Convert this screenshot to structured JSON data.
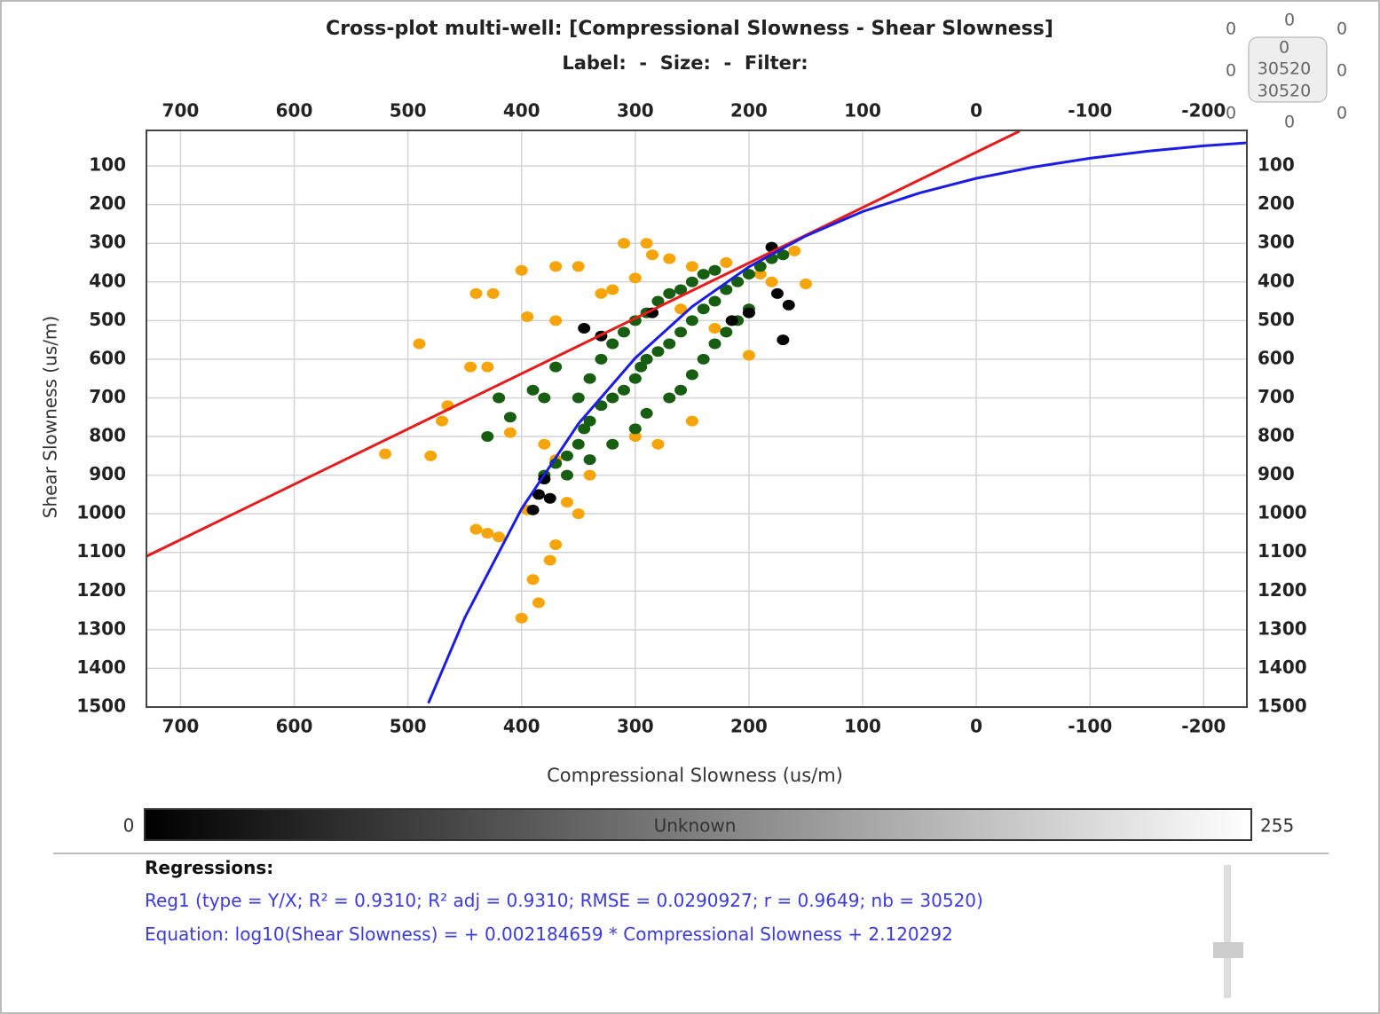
{
  "chart_data": {
    "type": "scatter",
    "title": "Cross-plot multi-well: [Compressional Slowness - Shear Slowness]",
    "subtitle": "Label:  -  Size:  -  Filter:",
    "x_label": "Compressional Slowness (us/m)",
    "y_label": "Shear Slowness (us/m)",
    "xlim": [
      730,
      -238
    ],
    "ylim": [
      1500,
      8
    ],
    "xticks": [
      700,
      600,
      500,
      400,
      300,
      200,
      100,
      0,
      -100,
      -200
    ],
    "yticks": [
      100,
      200,
      300,
      400,
      500,
      600,
      700,
      800,
      900,
      1000,
      1100,
      1200,
      1300,
      1400,
      1500
    ],
    "grid": true,
    "series": [
      {
        "type": "scatter",
        "color": "#f5a50a",
        "x": [
          520,
          480,
          470,
          490,
          465,
          445,
          430,
          420,
          440,
          425,
          395,
          370,
          400,
          370,
          350,
          330,
          320,
          310,
          290,
          300,
          285,
          270,
          250,
          220,
          190,
          180,
          150,
          160,
          200,
          230,
          260,
          410,
          380,
          370,
          360,
          350,
          395,
          370,
          390,
          385,
          400,
          420,
          430,
          375,
          340,
          300,
          280,
          250,
          440
        ],
        "values": [
          845,
          850,
          760,
          560,
          720,
          620,
          620,
          700,
          430,
          430,
          490,
          500,
          370,
          360,
          360,
          430,
          420,
          300,
          300,
          390,
          330,
          340,
          360,
          350,
          380,
          400,
          405,
          320,
          590,
          520,
          470,
          790,
          820,
          860,
          970,
          1000,
          990,
          1080,
          1170,
          1230,
          1270,
          1060,
          1050,
          1120,
          900,
          800,
          820,
          760,
          1040
        ]
      },
      {
        "type": "scatter",
        "color": "#175e12",
        "x": [
          380,
          370,
          360,
          350,
          345,
          340,
          330,
          320,
          310,
          300,
          295,
          290,
          280,
          270,
          260,
          250,
          240,
          230,
          220,
          210,
          200,
          190,
          180,
          170,
          350,
          340,
          330,
          320,
          310,
          300,
          290,
          280,
          270,
          260,
          250,
          240,
          230,
          360,
          340,
          320,
          300,
          290,
          270,
          260,
          250,
          240,
          230,
          220,
          210,
          200,
          430,
          410,
          380,
          390,
          420,
          370
        ],
        "values": [
          900,
          870,
          850,
          820,
          780,
          760,
          720,
          700,
          680,
          650,
          620,
          600,
          580,
          560,
          530,
          500,
          470,
          450,
          420,
          400,
          380,
          360,
          340,
          330,
          700,
          650,
          600,
          560,
          530,
          500,
          480,
          450,
          430,
          420,
          400,
          380,
          370,
          900,
          860,
          820,
          780,
          740,
          700,
          680,
          640,
          600,
          560,
          530,
          500,
          470,
          800,
          750,
          700,
          680,
          700,
          620
        ]
      },
      {
        "type": "scatter",
        "color": "#050505",
        "x": [
          380,
          385,
          390,
          375,
          345,
          330,
          215,
          180,
          175,
          165,
          170,
          285,
          200
        ],
        "values": [
          910,
          950,
          990,
          960,
          520,
          540,
          500,
          310,
          430,
          460,
          550,
          480,
          480
        ]
      },
      {
        "type": "line",
        "color": "#e51c1c",
        "x": [
          730,
          -38
        ],
        "values": [
          1110,
          10
        ]
      },
      {
        "type": "line",
        "color": "#1c1ce5",
        "x": [
          482,
          450,
          400,
          350,
          300,
          250,
          200,
          150,
          100,
          50,
          0,
          -50,
          -100,
          -150,
          -200,
          -238
        ],
        "values": [
          1490,
          1269,
          987,
          767,
          597,
          464,
          361,
          281,
          218,
          170,
          132,
          103,
          80,
          62,
          48,
          40
        ]
      }
    ]
  },
  "colorbar": {
    "min": "0",
    "label": "Unknown",
    "max": "255"
  },
  "regressions": {
    "heading": "Regressions:",
    "reg1": "Reg1 (type = Y/X; R² = 0.9310; R² adj = 0.9310; RMSE = 0.0290927; r = 0.9649; nb = 30520)",
    "equation": "Equation: log10(Shear Slowness) = + 0.002184659 * Compressional Slowness + 2.120292"
  },
  "widget": {
    "corners": [
      "0",
      "0",
      "0",
      "0",
      "0",
      "0",
      "0",
      "0"
    ],
    "box": [
      "0",
      "30520",
      "30520"
    ]
  }
}
